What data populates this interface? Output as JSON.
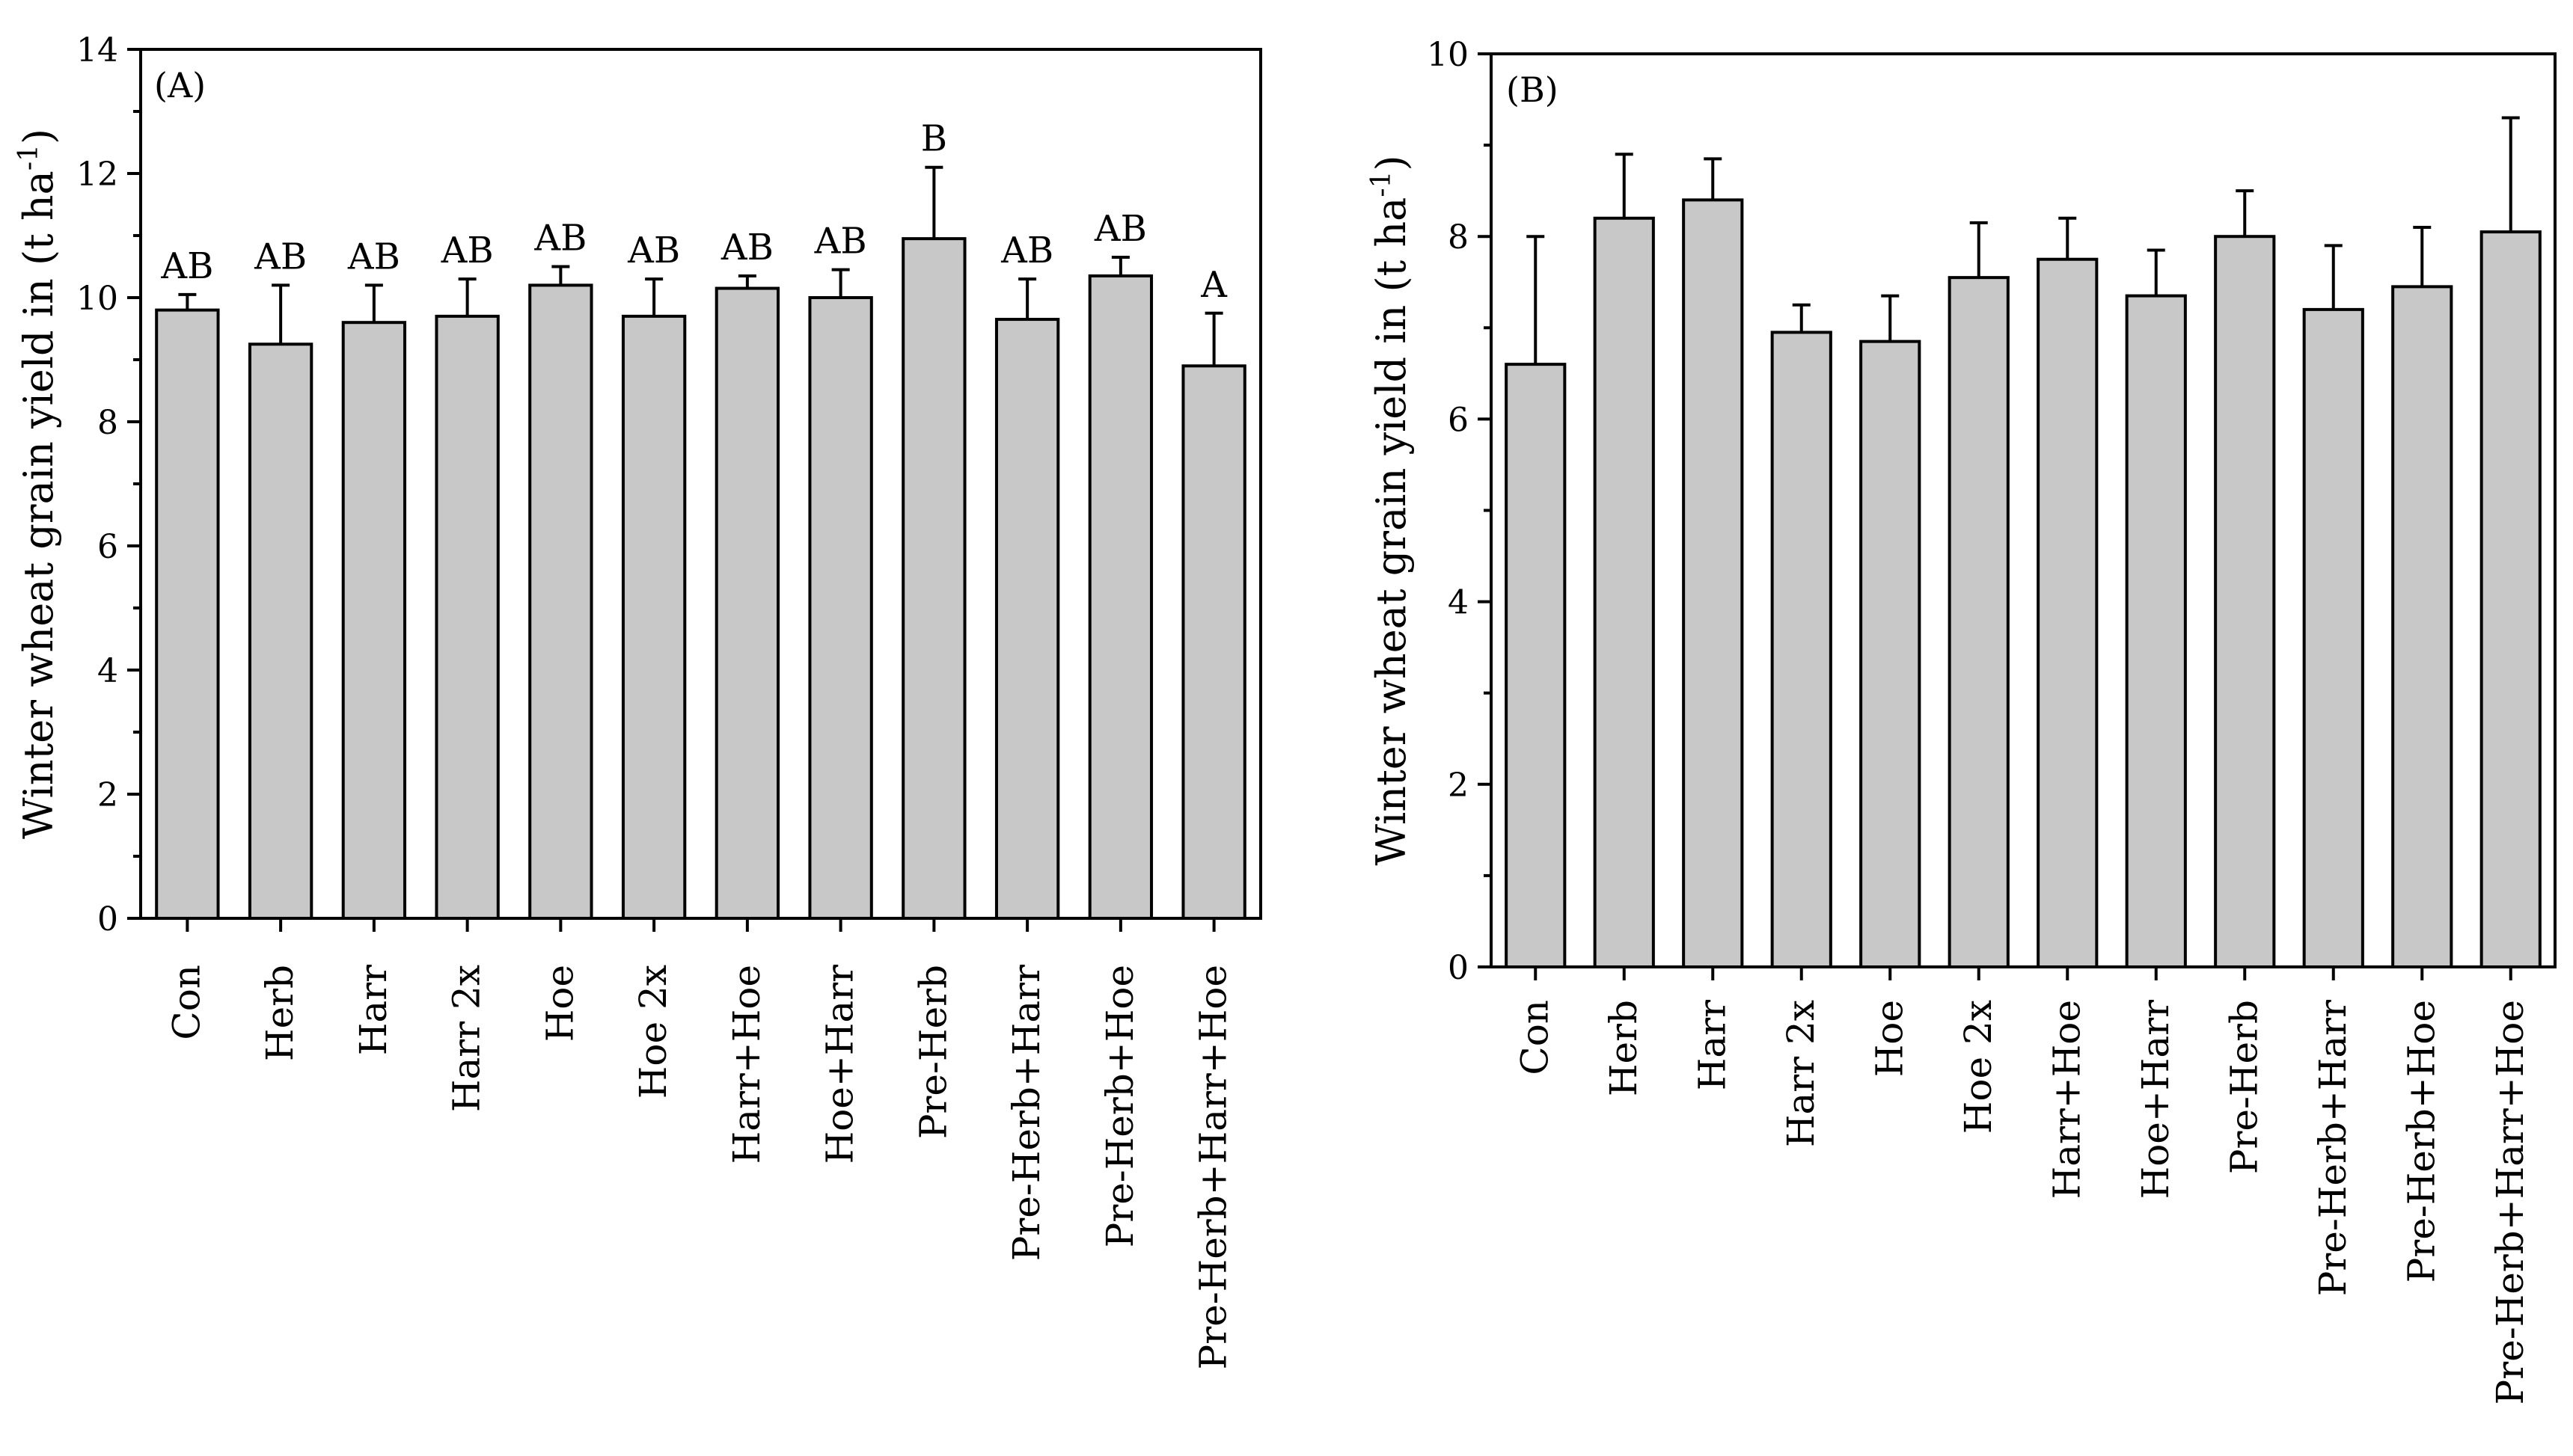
{
  "chart_data": [
    {
      "type": "bar",
      "panel_label": "(A)",
      "ylabel": "Winter wheat grain yield in (t ha",
      "ylabel_sup": "-1",
      "ylabel_end": ")",
      "ylim": [
        0,
        14
      ],
      "yticks": [
        0,
        2,
        4,
        6,
        8,
        10,
        12,
        14
      ],
      "categories": [
        "Con",
        "Herb",
        "Harr",
        "Harr 2x",
        "Hoe",
        "Hoe 2x",
        "Harr+Hoe",
        "Hoe+Harr",
        "Pre-Herb",
        "Pre-Herb+Harr",
        "Pre-Herb+Hoe",
        "Pre-Herb+Harr+Hoe"
      ],
      "values": [
        9.8,
        9.25,
        9.6,
        9.7,
        10.2,
        9.7,
        10.15,
        10.0,
        10.95,
        9.65,
        10.35,
        8.9
      ],
      "errors": [
        0.25,
        0.95,
        0.6,
        0.6,
        0.3,
        0.6,
        0.2,
        0.45,
        1.15,
        0.65,
        0.3,
        0.85
      ],
      "letters": [
        "AB",
        "AB",
        "AB",
        "AB",
        "AB",
        "AB",
        "AB",
        "AB",
        "B",
        "AB",
        "AB",
        "A"
      ]
    },
    {
      "type": "bar",
      "panel_label": "(B)",
      "ylabel": "Winter wheat grain yield in (t ha",
      "ylabel_sup": "-1",
      "ylabel_end": ")",
      "ylim": [
        0,
        10
      ],
      "yticks": [
        0,
        2,
        4,
        6,
        8,
        10
      ],
      "categories": [
        "Con",
        "Herb",
        "Harr",
        "Harr 2x",
        "Hoe",
        "Hoe 2x",
        "Harr+Hoe",
        "Hoe+Harr",
        "Pre-Herb",
        "Pre-Herb+Harr",
        "Pre-Herb+Hoe",
        "Pre-Herb+Harr+Hoe"
      ],
      "values": [
        6.6,
        8.2,
        8.4,
        6.95,
        6.85,
        7.55,
        7.75,
        7.35,
        8.0,
        7.2,
        7.45,
        8.05
      ],
      "errors": [
        1.4,
        0.7,
        0.45,
        0.3,
        0.5,
        0.6,
        0.45,
        0.5,
        0.5,
        0.7,
        0.65,
        1.25
      ],
      "letters": []
    }
  ]
}
